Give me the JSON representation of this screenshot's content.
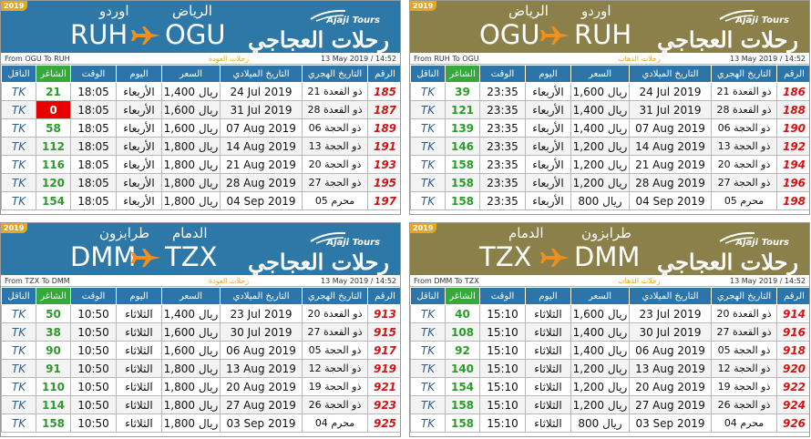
{
  "panels": [
    {
      "id": "p0",
      "year": "2019",
      "header": {
        "ar_dest": "الرياض",
        "ar_orig": "اوردو",
        "code_left": "RUH",
        "code_right": "OGU",
        "logo_en": "Ajaji Tours",
        "logo_ar": "رحلات العجاجي"
      },
      "subbar": {
        "from": "From OGU To RUH",
        "direction": "رحلات العودة",
        "stamp": "13 May 2019 / 14:52"
      },
      "columns": [
        "الناقل",
        "الشاغر",
        "الوقت",
        "اليوم",
        "السعر",
        "التاريخ الميلادي",
        "التاريخ الهجري",
        "الرقم"
      ],
      "rows": [
        {
          "carrier": "TK",
          "seats": "21",
          "time": "18:05",
          "day": "الأربعاء",
          "price": "1,400 ريال",
          "greg": "24 Jul 2019",
          "hijri": "21 ذو القعدة",
          "no": "185"
        },
        {
          "carrier": "TK",
          "seats": "0",
          "time": "18:05",
          "day": "الأربعاء",
          "price": "1,600 ريال",
          "greg": "31 Jul 2019",
          "hijri": "28 ذو القعدة",
          "no": "187"
        },
        {
          "carrier": "TK",
          "seats": "58",
          "time": "18:05",
          "day": "الأربعاء",
          "price": "1,600 ريال",
          "greg": "07 Aug 2019",
          "hijri": "06 ذو الحجة",
          "no": "189"
        },
        {
          "carrier": "TK",
          "seats": "112",
          "time": "18:05",
          "day": "الأربعاء",
          "price": "1,800 ريال",
          "greg": "14 Aug 2019",
          "hijri": "13 ذو الحجة",
          "no": "191"
        },
        {
          "carrier": "TK",
          "seats": "116",
          "time": "18:05",
          "day": "الأربعاء",
          "price": "1,800 ريال",
          "greg": "21 Aug 2019",
          "hijri": "20 ذو الحجة",
          "no": "193"
        },
        {
          "carrier": "TK",
          "seats": "120",
          "time": "18:05",
          "day": "الأربعاء",
          "price": "1,800 ريال",
          "greg": "28 Aug 2019",
          "hijri": "27 ذو الحجة",
          "no": "195"
        },
        {
          "carrier": "TK",
          "seats": "154",
          "time": "18:05",
          "day": "الأربعاء",
          "price": "1,800 ريال",
          "greg": "04 Sep 2019",
          "hijri": "05 محرم",
          "no": "197"
        }
      ]
    },
    {
      "id": "p1",
      "year": "2019",
      "header": {
        "ar_dest": "اوردو",
        "ar_orig": "الرياض",
        "code_left": "OGU",
        "code_right": "RUH",
        "logo_en": "Ajaji Tours",
        "logo_ar": "رحلات العجاجي"
      },
      "subbar": {
        "from": "From RUH To OGU",
        "direction": "رحلات الذهاب",
        "stamp": "13 May 2019 / 14:52"
      },
      "columns": [
        "الناقل",
        "الشاغر",
        "الوقت",
        "اليوم",
        "السعر",
        "التاريخ الميلادي",
        "التاريخ الهجري",
        "الرقم"
      ],
      "rows": [
        {
          "carrier": "TK",
          "seats": "39",
          "time": "23:35",
          "day": "الأربعاء",
          "price": "1,600 ريال",
          "greg": "24 Jul 2019",
          "hijri": "21 ذو القعدة",
          "no": "186"
        },
        {
          "carrier": "TK",
          "seats": "121",
          "time": "23:35",
          "day": "الأربعاء",
          "price": "1,400 ريال",
          "greg": "31 Jul 2019",
          "hijri": "28 ذو القعدة",
          "no": "188"
        },
        {
          "carrier": "TK",
          "seats": "139",
          "time": "23:35",
          "day": "الأربعاء",
          "price": "1,400 ريال",
          "greg": "07 Aug 2019",
          "hijri": "06 ذو الحجة",
          "no": "190"
        },
        {
          "carrier": "TK",
          "seats": "146",
          "time": "23:35",
          "day": "الأربعاء",
          "price": "1,200 ريال",
          "greg": "14 Aug 2019",
          "hijri": "13 ذو الحجة",
          "no": "192"
        },
        {
          "carrier": "TK",
          "seats": "158",
          "time": "23:35",
          "day": "الأربعاء",
          "price": "1,200 ريال",
          "greg": "21 Aug 2019",
          "hijri": "20 ذو الحجة",
          "no": "194"
        },
        {
          "carrier": "TK",
          "seats": "158",
          "time": "23:35",
          "day": "الأربعاء",
          "price": "1,200 ريال",
          "greg": "28 Aug 2019",
          "hijri": "27 ذو الحجة",
          "no": "196"
        },
        {
          "carrier": "TK",
          "seats": "158",
          "time": "23:35",
          "day": "الأربعاء",
          "price": "800 ريال",
          "greg": "04 Sep 2019",
          "hijri": "05 محرم",
          "no": "198"
        }
      ]
    },
    {
      "id": "p2",
      "year": "2019",
      "header": {
        "ar_dest": "الدمام",
        "ar_orig": "طرابزون",
        "code_left": "DMM",
        "code_right": "TZX",
        "logo_en": "Ajaji Tours",
        "logo_ar": "رحلات العجاجي"
      },
      "subbar": {
        "from": "From TZX To DMM",
        "direction": "رحلات العودة",
        "stamp": "13 May 2019 / 14:52"
      },
      "columns": [
        "الناقل",
        "الشاغر",
        "الوقت",
        "اليوم",
        "السعر",
        "التاريخ الميلادي",
        "التاريخ الهجري",
        "الرقم"
      ],
      "rows": [
        {
          "carrier": "TK",
          "seats": "50",
          "time": "10:50",
          "day": "الثلاثاء",
          "price": "1,400 ريال",
          "greg": "23 Jul 2019",
          "hijri": "20 ذو القعدة",
          "no": "913"
        },
        {
          "carrier": "TK",
          "seats": "38",
          "time": "10:50",
          "day": "الثلاثاء",
          "price": "1,600 ريال",
          "greg": "30 Jul 2019",
          "hijri": "27 ذو القعدة",
          "no": "915"
        },
        {
          "carrier": "TK",
          "seats": "90",
          "time": "10:50",
          "day": "الثلاثاء",
          "price": "1,600 ريال",
          "greg": "06 Aug 2019",
          "hijri": "05 ذو الحجة",
          "no": "917"
        },
        {
          "carrier": "TK",
          "seats": "91",
          "time": "10:50",
          "day": "الثلاثاء",
          "price": "1,800 ريال",
          "greg": "13 Aug 2019",
          "hijri": "12 ذو الحجة",
          "no": "919"
        },
        {
          "carrier": "TK",
          "seats": "110",
          "time": "10:50",
          "day": "الثلاثاء",
          "price": "1,800 ريال",
          "greg": "20 Aug 2019",
          "hijri": "19 ذو الحجة",
          "no": "921"
        },
        {
          "carrier": "TK",
          "seats": "114",
          "time": "10:50",
          "day": "الثلاثاء",
          "price": "1,800 ريال",
          "greg": "27 Aug 2019",
          "hijri": "26 ذو الحجة",
          "no": "923"
        },
        {
          "carrier": "TK",
          "seats": "158",
          "time": "10:50",
          "day": "الثلاثاء",
          "price": "1,800 ريال",
          "greg": "03 Sep 2019",
          "hijri": "04 محرم",
          "no": "925"
        }
      ]
    },
    {
      "id": "p3",
      "year": "2019",
      "header": {
        "ar_dest": "طرابزون",
        "ar_orig": "الدمام",
        "code_left": "TZX",
        "code_right": "DMM",
        "logo_en": "Ajaji Tours",
        "logo_ar": "رحلات العجاجي"
      },
      "subbar": {
        "from": "From DMM To TZX",
        "direction": "رحلات الذهاب",
        "stamp": "13 May 2019 / 14:52"
      },
      "columns": [
        "الناقل",
        "الشاغر",
        "الوقت",
        "اليوم",
        "السعر",
        "التاريخ الميلادي",
        "التاريخ الهجري",
        "الرقم"
      ],
      "rows": [
        {
          "carrier": "TK",
          "seats": "40",
          "time": "15:10",
          "day": "الثلاثاء",
          "price": "1,600 ريال",
          "greg": "23 Jul 2019",
          "hijri": "20 ذو القعدة",
          "no": "914"
        },
        {
          "carrier": "TK",
          "seats": "108",
          "time": "15:10",
          "day": "الثلاثاء",
          "price": "1,400 ريال",
          "greg": "30 Jul 2019",
          "hijri": "27 ذو القعدة",
          "no": "916"
        },
        {
          "carrier": "TK",
          "seats": "92",
          "time": "15:10",
          "day": "الثلاثاء",
          "price": "1,400 ريال",
          "greg": "06 Aug 2019",
          "hijri": "05 ذو الحجة",
          "no": "918"
        },
        {
          "carrier": "TK",
          "seats": "140",
          "time": "15:10",
          "day": "الثلاثاء",
          "price": "1,200 ريال",
          "greg": "13 Aug 2019",
          "hijri": "12 ذو الحجة",
          "no": "920"
        },
        {
          "carrier": "TK",
          "seats": "154",
          "time": "15:10",
          "day": "الثلاثاء",
          "price": "1,200 ريال",
          "greg": "20 Aug 2019",
          "hijri": "19 ذو الحجة",
          "no": "922"
        },
        {
          "carrier": "TK",
          "seats": "158",
          "time": "15:10",
          "day": "الثلاثاء",
          "price": "1,200 ريال",
          "greg": "27 Aug 2019",
          "hijri": "26 ذو الحجة",
          "no": "924"
        },
        {
          "carrier": "TK",
          "seats": "158",
          "time": "15:10",
          "day": "الثلاثاء",
          "price": "800 ريال",
          "greg": "03 Sep 2019",
          "hijri": "04 محرم",
          "no": "926"
        }
      ]
    }
  ],
  "colors": {
    "blue_header": "#2e78a8",
    "olive_header": "#8c804a",
    "accent": "#e8a520",
    "zero_seat": "#e80000",
    "seats_green": "#2b9b2b",
    "flight_red": "#d11515"
  }
}
